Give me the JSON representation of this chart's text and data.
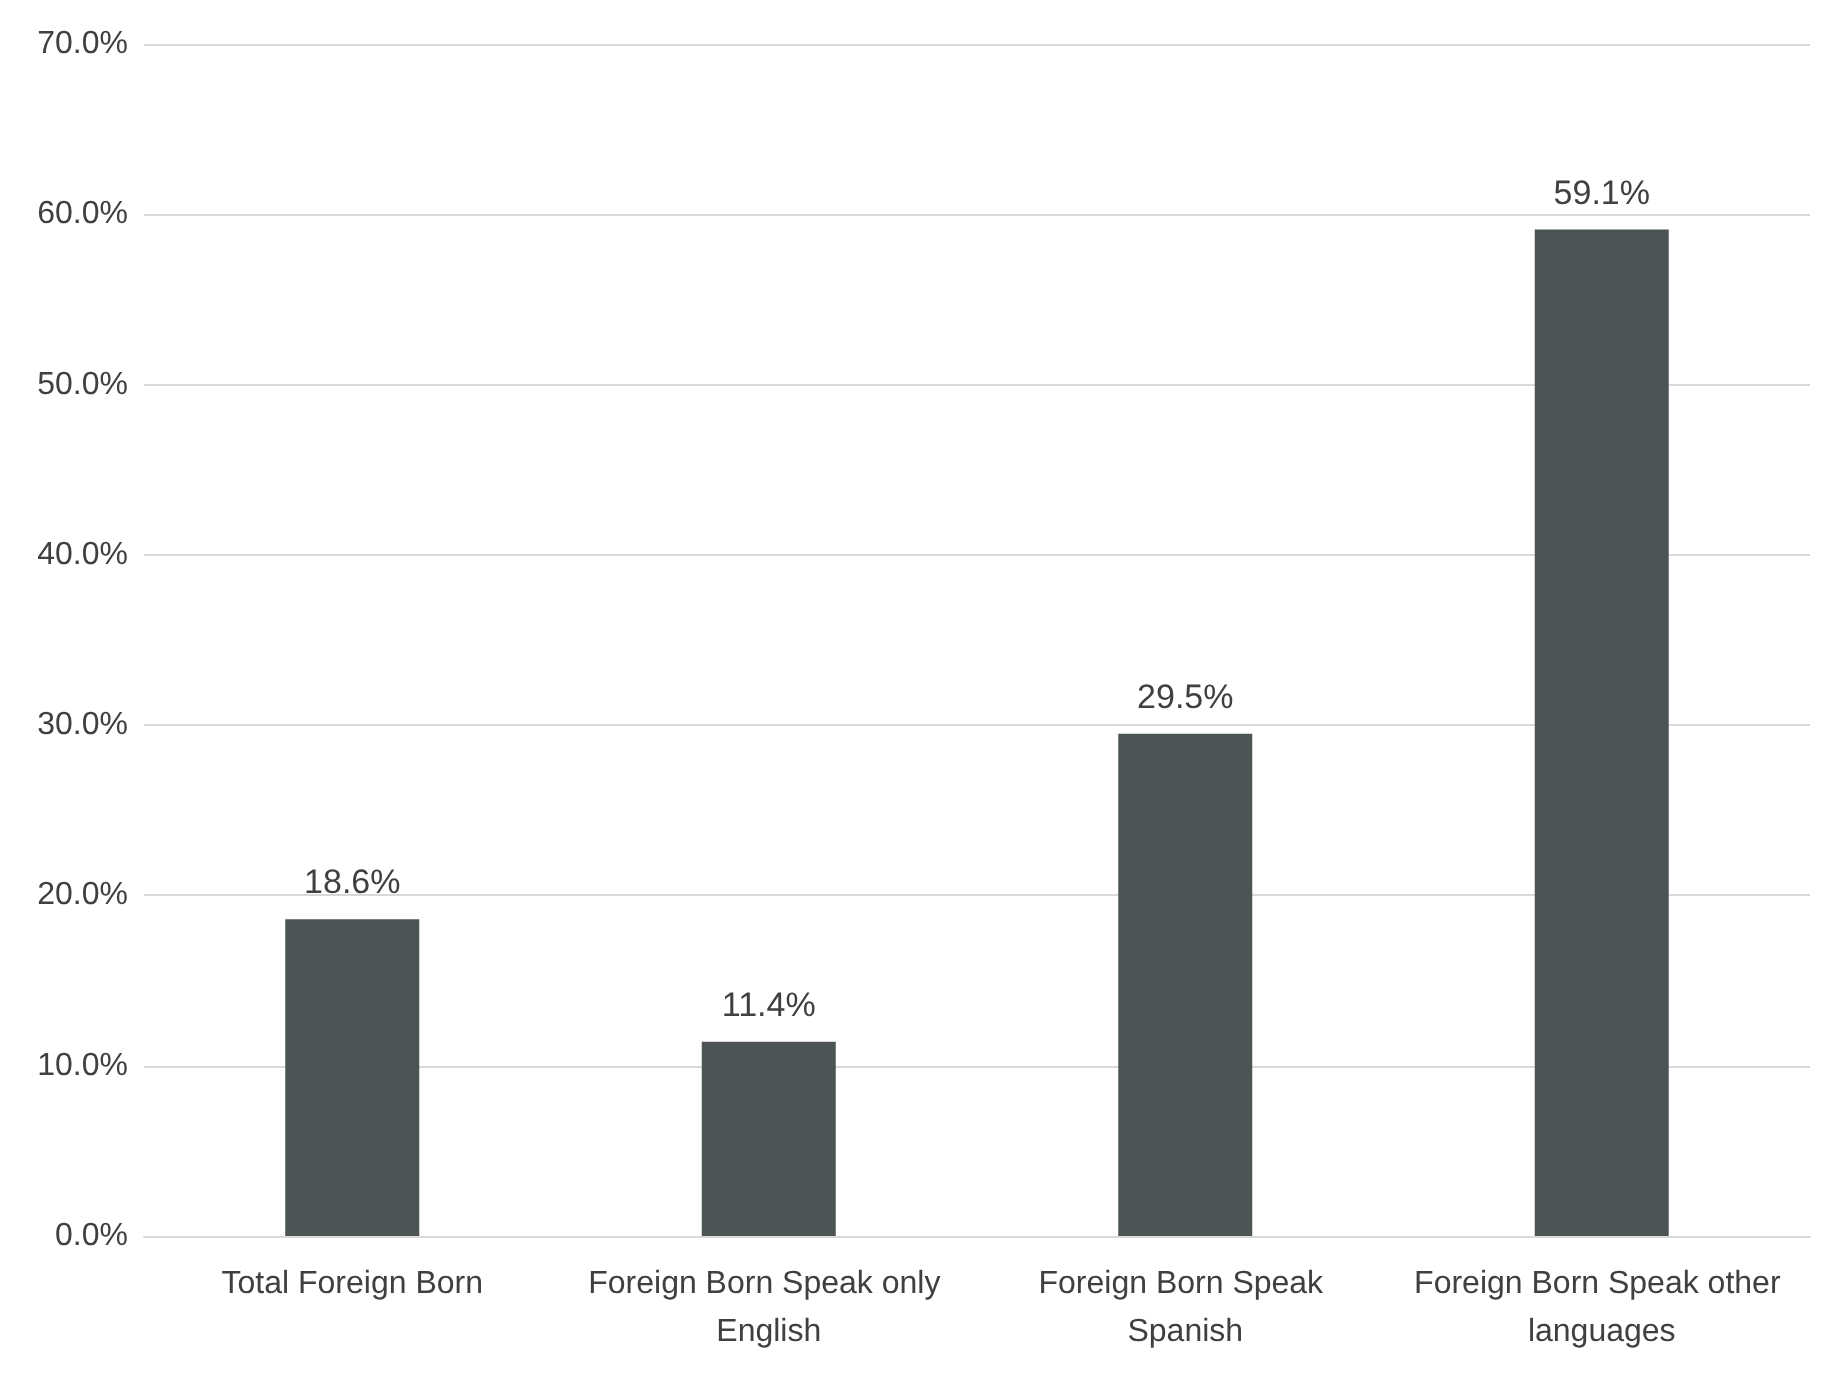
{
  "chart_data": {
    "type": "bar",
    "categories": [
      "Total Foreign Born",
      "Foreign Born Speak only English",
      "Foreign Born Speak Spanish",
      "Foreign Born Speak other languages"
    ],
    "values": [
      18.6,
      11.4,
      29.5,
      59.1
    ],
    "value_labels": [
      "18.6%",
      "11.4%",
      "29.5%",
      "59.1%"
    ],
    "color": "#4d5456",
    "ylim": [
      0,
      70
    ],
    "yticks": [
      {
        "value": 0,
        "label": "0.0%"
      },
      {
        "value": 10,
        "label": "10.0%"
      },
      {
        "value": 20,
        "label": "20.0%"
      },
      {
        "value": 30,
        "label": "30.0%"
      },
      {
        "value": 40,
        "label": "40.0%"
      },
      {
        "value": 50,
        "label": "50.0%"
      },
      {
        "value": 60,
        "label": "60.0%"
      },
      {
        "value": 70,
        "label": "70.0%"
      }
    ],
    "grid": "y"
  }
}
